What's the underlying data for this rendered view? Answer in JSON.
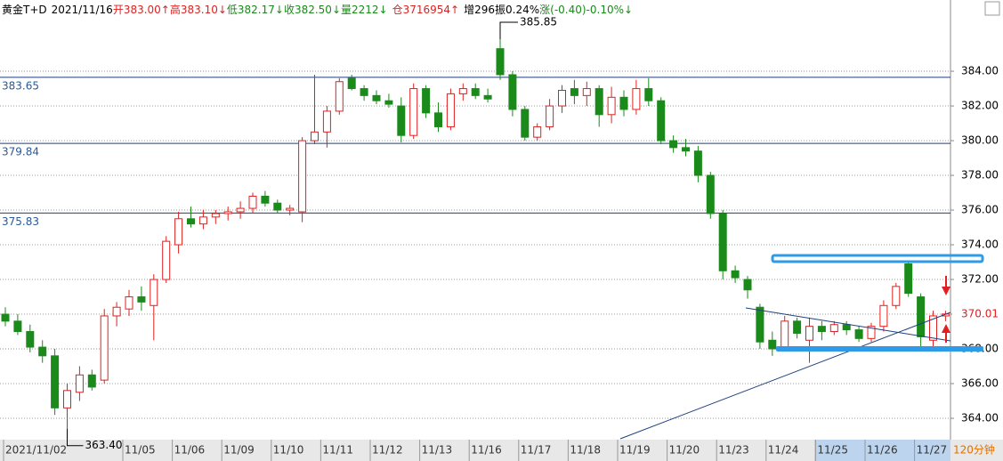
{
  "chart_data": {
    "type": "candlestick",
    "header": [
      {
        "text": "黄金T+D",
        "color": "#000000"
      },
      {
        "text": "2021/11/16",
        "color": "#000000"
      },
      {
        "text": "开383.00↑",
        "color": "#e02020"
      },
      {
        "text": "高383.10↓",
        "color": "#e02020"
      },
      {
        "text": "低382.17↓",
        "color": "#1a8a1a"
      },
      {
        "text": "收382.50↓",
        "color": "#1a8a1a"
      },
      {
        "text": "量2212↓",
        "color": "#1a8a1a"
      },
      {
        "text": "仓3716954↑",
        "color": "#e02020"
      },
      {
        "text": "增296",
        "color": "#000000"
      },
      {
        "text": "振0.24%",
        "color": "#000000"
      },
      {
        "text": "涨(-0.40)-0.10%↓",
        "color": "#1a8a1a"
      }
    ],
    "categories": [
      "2021/11/02",
      null,
      null,
      null,
      null,
      null,
      null,
      null,
      null,
      null,
      "11/05",
      null,
      null,
      null,
      "11/06",
      null,
      null,
      null,
      "11/09",
      null,
      null,
      null,
      "11/10",
      null,
      null,
      null,
      "11/11",
      null,
      null,
      null,
      "11/12",
      null,
      null,
      null,
      "11/13",
      null,
      null,
      null,
      "11/16",
      null,
      null,
      null,
      "11/17",
      null,
      null,
      null,
      "11/18",
      null,
      null,
      null,
      "11/19",
      null,
      null,
      null,
      "11/20",
      null,
      null,
      null,
      "11/23",
      null,
      null,
      null,
      "11/24",
      null,
      null,
      null,
      "11/25",
      null,
      null,
      null,
      "11/26",
      null,
      null,
      null,
      "11/27",
      null,
      null
    ],
    "open": [
      370.0,
      369.6,
      369.0,
      368.1,
      367.6,
      364.6,
      365.5,
      366.5,
      366.2,
      369.9,
      370.3,
      371.0,
      370.5,
      372.0,
      374.0,
      375.5,
      375.2,
      375.6,
      375.8,
      375.9,
      376.1,
      376.8,
      376.4,
      376.0,
      375.9,
      380.0,
      380.5,
      381.7,
      383.6,
      383.0,
      382.6,
      382.3,
      382.0,
      380.3,
      383.0,
      381.6,
      380.8,
      382.7,
      383.0,
      382.6,
      385.3,
      383.8,
      381.8,
      380.2,
      380.8,
      382.0,
      383.0,
      382.6,
      383.0,
      381.5,
      382.5,
      381.8,
      383.0,
      382.3,
      380.0,
      379.6,
      379.4,
      378.0,
      375.8,
      372.5,
      372.0,
      370.4,
      368.5,
      368.0,
      369.6,
      368.5,
      369.3,
      369.0,
      369.4,
      369.1,
      368.6,
      369.3,
      370.5,
      372.9,
      371.0,
      368.5,
      369.9
    ],
    "high": [
      370.4,
      370.0,
      369.4,
      368.5,
      368.0,
      366.0,
      367.0,
      366.8,
      370.3,
      370.7,
      371.4,
      371.6,
      372.3,
      374.5,
      375.9,
      376.2,
      376.0,
      376.0,
      376.2,
      376.5,
      377.0,
      377.1,
      376.6,
      376.3,
      380.2,
      383.8,
      382.0,
      383.6,
      383.8,
      383.2,
      382.9,
      382.7,
      382.5,
      383.3,
      383.2,
      382.2,
      383.0,
      383.3,
      383.3,
      383.0,
      385.85,
      384.0,
      382.0,
      381.0,
      382.4,
      383.2,
      383.5,
      383.4,
      383.2,
      383.1,
      382.9,
      383.5,
      383.6,
      382.5,
      380.3,
      380.1,
      379.7,
      378.2,
      376.0,
      372.8,
      372.2,
      370.6,
      369.0,
      369.9,
      369.8,
      369.8,
      369.6,
      369.6,
      369.6,
      369.3,
      369.5,
      370.8,
      371.8,
      373.0,
      371.2,
      370.2,
      370.2
    ],
    "low": [
      369.3,
      368.8,
      367.8,
      367.2,
      364.2,
      363.4,
      365.0,
      365.6,
      366.0,
      369.3,
      369.9,
      370.2,
      368.5,
      371.8,
      373.5,
      375.0,
      374.9,
      375.2,
      375.4,
      375.5,
      375.8,
      376.2,
      375.8,
      375.7,
      375.3,
      379.8,
      379.6,
      381.5,
      382.9,
      382.3,
      382.1,
      381.9,
      379.9,
      380.1,
      381.3,
      380.5,
      380.6,
      382.3,
      382.4,
      382.2,
      383.5,
      381.4,
      380.0,
      380.0,
      380.6,
      381.6,
      382.1,
      382.0,
      380.8,
      381.0,
      381.4,
      381.5,
      382.0,
      379.8,
      379.3,
      379.1,
      377.6,
      375.5,
      372.0,
      371.8,
      370.9,
      368.0,
      367.6,
      367.9,
      368.6,
      367.2,
      368.5,
      368.8,
      368.8,
      368.4,
      368.4,
      369.0,
      370.3,
      371.0,
      368.0,
      367.9,
      369.6
    ],
    "close": [
      369.6,
      369.0,
      368.1,
      367.6,
      364.6,
      365.6,
      366.5,
      365.8,
      369.9,
      370.4,
      371.0,
      370.7,
      372.0,
      374.2,
      375.5,
      375.2,
      375.6,
      375.8,
      375.9,
      376.1,
      376.8,
      376.4,
      376.0,
      376.1,
      380.0,
      380.5,
      381.7,
      383.4,
      383.0,
      382.6,
      382.3,
      382.1,
      380.3,
      383.0,
      381.6,
      380.8,
      382.7,
      383.0,
      382.6,
      382.4,
      383.8,
      381.8,
      380.2,
      380.8,
      382.0,
      382.9,
      382.6,
      383.0,
      381.5,
      382.5,
      381.8,
      383.0,
      382.3,
      380.0,
      379.6,
      379.4,
      378.0,
      375.8,
      372.5,
      372.1,
      371.4,
      368.4,
      368.0,
      369.6,
      368.9,
      369.3,
      369.0,
      369.4,
      369.1,
      368.6,
      369.3,
      370.5,
      371.6,
      371.2,
      368.7,
      369.9,
      370.01
    ],
    "ylim": [
      362.77,
      387.08
    ],
    "yticks": [
      {
        "value": 364,
        "label": "364.00"
      },
      {
        "value": 366,
        "label": "366.00"
      },
      {
        "value": 368,
        "label": "368.00"
      },
      {
        "value": 370,
        "label": "370.00"
      },
      {
        "value": 372,
        "label": "372.00"
      },
      {
        "value": 374,
        "label": "374.00"
      },
      {
        "value": 376,
        "label": "376.00"
      },
      {
        "value": 378,
        "label": "378.00"
      },
      {
        "value": 380,
        "label": "380.00"
      },
      {
        "value": 382,
        "label": "382.00"
      },
      {
        "value": 384,
        "label": "384.00"
      }
    ],
    "grid": true,
    "levels": [
      383.65,
      379.84,
      375.83
    ],
    "high_mark": 385.85,
    "low_mark": {
      "value": 363.4,
      "label": "363.40"
    },
    "last_price": 370.01,
    "period": "120分钟",
    "up_color": "#e02020",
    "down_color": "#1a8a1a",
    "level_color": "#1f3f7f"
  }
}
